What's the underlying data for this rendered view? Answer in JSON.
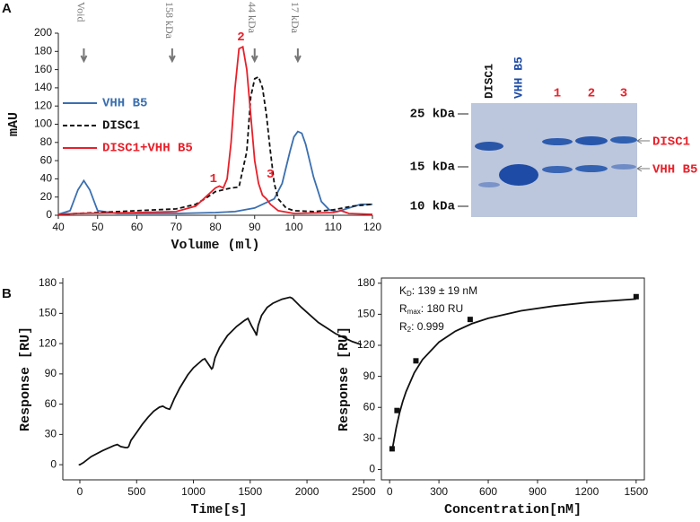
{
  "panels": [
    "A",
    "B"
  ],
  "chart_data": [
    {
      "type": "line",
      "xlabel": "Volume (ml)",
      "ylabel": "mAU",
      "xlim": [
        40,
        120
      ],
      "xticks": [
        40,
        50,
        60,
        70,
        80,
        90,
        100,
        110,
        120
      ],
      "ylim": [
        0,
        200
      ],
      "yticks": [
        0,
        20,
        40,
        60,
        80,
        100,
        120,
        140,
        160,
        180,
        200
      ],
      "legend": "left",
      "series": [
        {
          "name": "VHH B5",
          "color": "#3a6fb0",
          "linestyle": "solid",
          "x": [
            40,
            43,
            45,
            46.5,
            48,
            50,
            55,
            60,
            70,
            80,
            85,
            90,
            93,
            95,
            97,
            99,
            100,
            101,
            102,
            103,
            105,
            107,
            109,
            111,
            114,
            117,
            120
          ],
          "values": [
            1,
            5,
            28,
            38,
            28,
            5,
            2,
            2,
            2,
            3,
            4,
            8,
            14,
            18,
            35,
            70,
            86,
            92,
            90,
            78,
            42,
            15,
            6,
            4,
            8,
            12,
            12
          ]
        },
        {
          "name": "DISC1",
          "color": "#111111",
          "linestyle": "dashed",
          "x": [
            40,
            50,
            60,
            70,
            75,
            78,
            80,
            82,
            84,
            86,
            88,
            89,
            90,
            91,
            92,
            93,
            94,
            95,
            96,
            98,
            100,
            105,
            110,
            115,
            120
          ],
          "values": [
            1,
            3,
            5,
            7,
            12,
            20,
            26,
            28,
            30,
            31,
            70,
            130,
            150,
            152,
            140,
            110,
            70,
            35,
            18,
            8,
            5,
            4,
            6,
            10,
            12
          ]
        },
        {
          "name": "DISC1+VHH B5",
          "color": "#e8202a",
          "linestyle": "solid",
          "x": [
            40,
            45,
            60,
            70,
            75,
            78,
            80,
            81,
            82,
            83,
            84,
            85,
            86,
            87,
            88,
            89,
            90,
            91,
            92,
            93,
            94,
            96,
            100,
            110,
            112,
            114,
            120
          ],
          "values": [
            1,
            2,
            3,
            4,
            10,
            22,
            30,
            32,
            30,
            40,
            80,
            140,
            183,
            185,
            160,
            110,
            60,
            35,
            22,
            18,
            12,
            5,
            2,
            3,
            5,
            2,
            1
          ]
        }
      ],
      "markers": [
        {
          "text": "Void",
          "x": 46.5
        },
        {
          "text": "158 kDa",
          "x": 69
        },
        {
          "text": "44 kDa",
          "x": 90
        },
        {
          "text": "17 kDa",
          "x": 101
        }
      ],
      "peaks": [
        {
          "text": "1",
          "x": 79.5,
          "y": 40
        },
        {
          "text": "2",
          "x": 86.5,
          "y": 196
        },
        {
          "text": "3",
          "x": 94,
          "y": 45
        }
      ]
    },
    {
      "type": "line",
      "xlabel": "Time[s]",
      "ylabel": "Response [RU]",
      "xlim": [
        -150,
        2600
      ],
      "xticks": [
        0,
        500,
        1000,
        1500,
        2000,
        2500
      ],
      "ylim": [
        -15,
        185
      ],
      "yticks": [
        0,
        30,
        60,
        90,
        120,
        150,
        180
      ],
      "series": [
        {
          "color": "#111111",
          "linestyle": "solid",
          "x": [
            -10,
            0,
            30,
            100,
            200,
            300,
            330,
            360,
            400,
            420,
            430,
            450,
            500,
            550,
            600,
            650,
            700,
            730,
            760,
            790,
            800,
            830,
            880,
            950,
            1000,
            1050,
            1080,
            1100,
            1130,
            1160,
            1170,
            1190,
            1230,
            1300,
            1380,
            1450,
            1480,
            1510,
            1550,
            1555,
            1570,
            1600,
            1650,
            1700,
            1780,
            1850,
            1870,
            1950,
            2100,
            2250,
            2400,
            2480
          ],
          "values": [
            0,
            0,
            2,
            8,
            14,
            19,
            20,
            18,
            17,
            17,
            18,
            24,
            32,
            40,
            47,
            53,
            57,
            58,
            56,
            55,
            57,
            65,
            76,
            89,
            96,
            101,
            104,
            105,
            100,
            95,
            96,
            106,
            116,
            128,
            137,
            143,
            145,
            138,
            130,
            128,
            138,
            148,
            156,
            160,
            164,
            166,
            165,
            156,
            141,
            130,
            122,
            119
          ]
        }
      ]
    },
    {
      "type": "scatter",
      "xlabel": "Concentration[nM]",
      "ylabel": "Response [RU]",
      "xlim": [
        -50,
        1550
      ],
      "xticks": [
        0,
        300,
        600,
        900,
        1200,
        1500
      ],
      "ylim": [
        -10,
        185
      ],
      "yticks": [
        0,
        30,
        60,
        90,
        120,
        150,
        180
      ],
      "series": [
        {
          "kind": "markers",
          "color": "#111111",
          "x": [
            15,
            45,
            160,
            490,
            1500
          ],
          "values": [
            20,
            57,
            105,
            145,
            167
          ]
        },
        {
          "kind": "line",
          "color": "#111111",
          "x": [
            15,
            20,
            40,
            60,
            80,
            100,
            150,
            200,
            300,
            400,
            500,
            600,
            800,
            1000,
            1200,
            1500
          ],
          "values": [
            20,
            22.6,
            40.2,
            54.3,
            65.8,
            75.3,
            93.4,
            106.2,
            123.0,
            133.6,
            140.9,
            146.1,
            153.4,
            158.0,
            161.3,
            164.7
          ]
        }
      ],
      "annotation": [
        [
          "K",
          "D",
          ": 139 ± 19 nM"
        ],
        [
          "R",
          "max",
          ": 180 RU"
        ],
        [
          "R",
          "2",
          ": 0.999"
        ]
      ]
    }
  ],
  "gel": {
    "lanes": [
      "DISC1",
      "VHH B5",
      "1",
      "2",
      "3"
    ],
    "markers": [
      "25 kDa",
      "15 kDa",
      "10 kDa"
    ],
    "bands": [
      "DISC1",
      "VHH B5"
    ]
  }
}
